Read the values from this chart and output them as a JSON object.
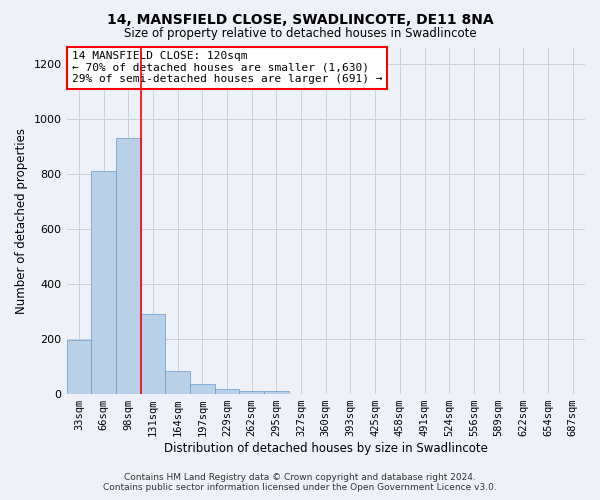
{
  "title": "14, MANSFIELD CLOSE, SWADLINCOTE, DE11 8NA",
  "subtitle": "Size of property relative to detached houses in Swadlincote",
  "xlabel": "Distribution of detached houses by size in Swadlincote",
  "ylabel": "Number of detached properties",
  "bar_color": "#b8d0e8",
  "bar_edge_color": "#6699cc",
  "bin_labels": [
    "33sqm",
    "66sqm",
    "98sqm",
    "131sqm",
    "164sqm",
    "197sqm",
    "229sqm",
    "262sqm",
    "295sqm",
    "327sqm",
    "360sqm",
    "393sqm",
    "425sqm",
    "458sqm",
    "491sqm",
    "524sqm",
    "556sqm",
    "589sqm",
    "622sqm",
    "654sqm",
    "687sqm"
  ],
  "bar_values": [
    195,
    810,
    930,
    290,
    85,
    35,
    20,
    12,
    10,
    0,
    0,
    0,
    0,
    0,
    0,
    0,
    0,
    0,
    0,
    0,
    0
  ],
  "ylim": [
    0,
    1260
  ],
  "yticks": [
    0,
    200,
    400,
    600,
    800,
    1000,
    1200
  ],
  "red_line_bin": 2.5,
  "annotation_text": "14 MANSFIELD CLOSE: 120sqm\n← 70% of detached houses are smaller (1,630)\n29% of semi-detached houses are larger (691) →",
  "footer_line1": "Contains HM Land Registry data © Crown copyright and database right 2024.",
  "footer_line2": "Contains public sector information licensed under the Open Government Licence v3.0.",
  "background_color": "#eef2f8",
  "plot_bg_color": "#eef2f8",
  "grid_color": "#c8d0dc"
}
